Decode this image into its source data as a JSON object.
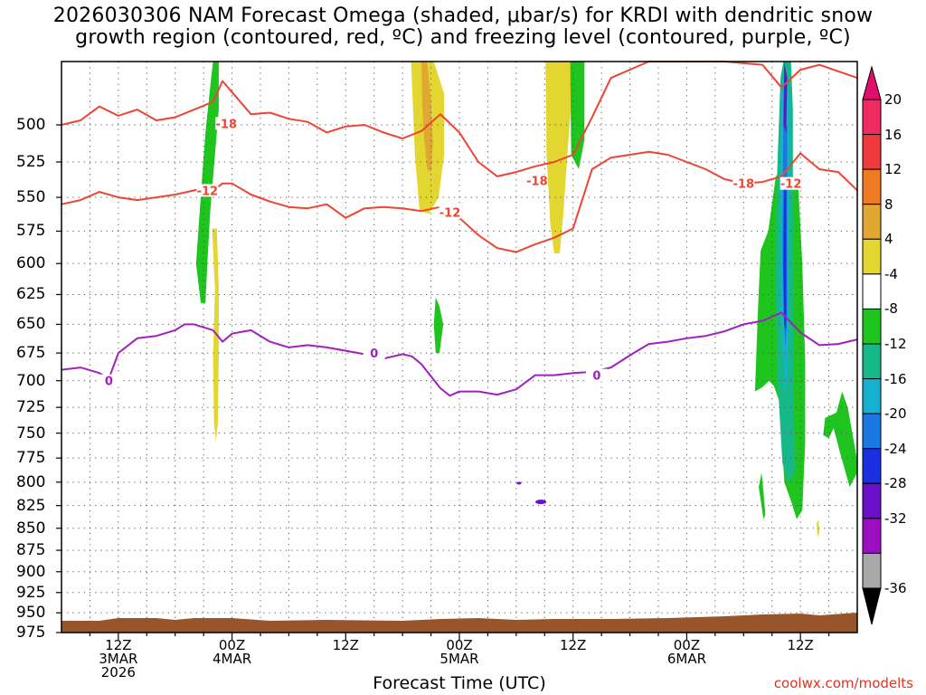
{
  "title": {
    "line1": "2026030306 NAM Forecast Omega (shaded, μbar/s) for KRDI with dendritic snow",
    "line2": "growth region (contoured, red, ºC) and freezing level (contoured, purple, ºC)"
  },
  "xlabel": "Forecast Time (UTC)",
  "credit": "coolwx.com/modelts",
  "chart_data": {
    "type": "heatmap",
    "x_range_hours": [
      0,
      84
    ],
    "y_range_hpa": [
      975,
      460
    ],
    "y_ticks": [
      "500",
      "525",
      "550",
      "575",
      "600",
      "625",
      "650",
      "675",
      "700",
      "725",
      "750",
      "775",
      "800",
      "825",
      "850",
      "875",
      "900",
      "925",
      "950",
      "975"
    ],
    "x_ticks": [
      {
        "label": "12Z",
        "sub1": "3MAR",
        "sub2": "2026",
        "hour": 6
      },
      {
        "label": "00Z",
        "sub1": "4MAR",
        "sub2": "",
        "hour": 18
      },
      {
        "label": "12Z",
        "sub1": "",
        "sub2": "",
        "hour": 30
      },
      {
        "label": "00Z",
        "sub1": "5MAR",
        "sub2": "",
        "hour": 42
      },
      {
        "label": "12Z",
        "sub1": "",
        "sub2": "",
        "hour": 54
      },
      {
        "label": "00Z",
        "sub1": "6MAR",
        "sub2": "",
        "hour": 66
      },
      {
        "label": "12Z",
        "sub1": "",
        "sub2": "",
        "hour": 78
      }
    ],
    "colorbar": {
      "labels": [
        "20",
        "16",
        "12",
        "8",
        "4",
        "-4",
        "-8",
        "-12",
        "-16",
        "-20",
        "-24",
        "-28",
        "-32",
        "-36"
      ],
      "colors": [
        "#f02a63",
        "#ee3a3a",
        "#ee7a22",
        "#e0a832",
        "#e4d630",
        "#ffffff",
        "#1fc41f",
        "#16b88a",
        "#18b0d0",
        "#1a78e0",
        "#1a30e0",
        "#6a10c8",
        "#9a10c0",
        "#a8a8a8"
      ],
      "over_color": "#e0106a",
      "under_color": "#000000"
    },
    "contour_labels": [
      {
        "text": "-18",
        "color": "#ee4433"
      },
      {
        "text": "-12",
        "color": "#ee4433"
      },
      {
        "text": "-18",
        "color": "#ee4433"
      },
      {
        "text": "-12",
        "color": "#ee4433"
      },
      {
        "text": "-18",
        "color": "#ee4433"
      },
      {
        "text": "-12",
        "color": "#ee4433"
      },
      {
        "text": "0",
        "color": "#a020c0"
      },
      {
        "text": "0",
        "color": "#a020c0"
      },
      {
        "text": "0",
        "color": "#a020c0"
      }
    ],
    "series": [
      {
        "name": "-18",
        "color": "#ee4433",
        "points": [
          [
            0,
            500
          ],
          [
            2,
            497
          ],
          [
            4,
            488
          ],
          [
            6,
            494
          ],
          [
            8,
            490
          ],
          [
            10,
            497
          ],
          [
            12,
            495
          ],
          [
            14,
            490
          ],
          [
            16,
            485
          ],
          [
            17,
            472
          ],
          [
            20,
            493
          ],
          [
            22,
            492
          ],
          [
            24,
            496
          ],
          [
            26,
            498
          ],
          [
            28,
            505
          ],
          [
            30,
            501
          ],
          [
            32,
            500
          ],
          [
            34,
            505
          ],
          [
            36,
            509
          ],
          [
            38,
            504
          ],
          [
            40,
            493
          ],
          [
            42,
            505
          ],
          [
            44,
            525
          ],
          [
            46,
            535
          ],
          [
            48,
            532
          ],
          [
            50,
            528
          ],
          [
            52,
            525
          ],
          [
            54,
            520
          ],
          [
            56,
            495
          ],
          [
            58,
            470
          ],
          [
            62,
            460
          ],
          [
            70,
            460
          ],
          [
            74,
            462
          ],
          [
            76,
            476
          ],
          [
            78,
            465
          ],
          [
            80,
            462
          ],
          [
            84,
            470
          ]
        ]
      },
      {
        "name": "-12",
        "color": "#ee4433",
        "points": [
          [
            0,
            555
          ],
          [
            2,
            552
          ],
          [
            4,
            546
          ],
          [
            6,
            550
          ],
          [
            8,
            552
          ],
          [
            10,
            550
          ],
          [
            12,
            548
          ],
          [
            14,
            545
          ],
          [
            15,
            543
          ],
          [
            16,
            545
          ],
          [
            17,
            540
          ],
          [
            18,
            540
          ],
          [
            20,
            548
          ],
          [
            22,
            553
          ],
          [
            24,
            557
          ],
          [
            26,
            558
          ],
          [
            28,
            555
          ],
          [
            29,
            560
          ],
          [
            30,
            565
          ],
          [
            32,
            558
          ],
          [
            34,
            557
          ],
          [
            36,
            558
          ],
          [
            38,
            560
          ],
          [
            40,
            557
          ],
          [
            42,
            565
          ],
          [
            44,
            578
          ],
          [
            46,
            588
          ],
          [
            48,
            591
          ],
          [
            50,
            585
          ],
          [
            52,
            580
          ],
          [
            54,
            573
          ],
          [
            56,
            530
          ],
          [
            58,
            522
          ],
          [
            60,
            520
          ],
          [
            62,
            518
          ],
          [
            64,
            520
          ],
          [
            66,
            525
          ],
          [
            68,
            530
          ],
          [
            70,
            537
          ],
          [
            72,
            540
          ],
          [
            74,
            539
          ],
          [
            76,
            535
          ],
          [
            78,
            519
          ],
          [
            80,
            530
          ],
          [
            82,
            532
          ],
          [
            84,
            545
          ]
        ]
      },
      {
        "name": "0",
        "color": "#a020c0",
        "points": [
          [
            0,
            690
          ],
          [
            2,
            688
          ],
          [
            4,
            693
          ],
          [
            5,
            698
          ],
          [
            6,
            675
          ],
          [
            8,
            662
          ],
          [
            10,
            660
          ],
          [
            12,
            655
          ],
          [
            13,
            650
          ],
          [
            14,
            650
          ],
          [
            16,
            655
          ],
          [
            17,
            665
          ],
          [
            18,
            658
          ],
          [
            20,
            655
          ],
          [
            22,
            665
          ],
          [
            24,
            670
          ],
          [
            26,
            668
          ],
          [
            28,
            670
          ],
          [
            30,
            673
          ],
          [
            32,
            676
          ],
          [
            34,
            680
          ],
          [
            36,
            676
          ],
          [
            37,
            678
          ],
          [
            38,
            685
          ],
          [
            40,
            707
          ],
          [
            41,
            714
          ],
          [
            42,
            710
          ],
          [
            44,
            710
          ],
          [
            46,
            713
          ],
          [
            48,
            708
          ],
          [
            50,
            695
          ],
          [
            52,
            695
          ],
          [
            54,
            693
          ],
          [
            56,
            692
          ],
          [
            58,
            688
          ],
          [
            60,
            677
          ],
          [
            62,
            667
          ],
          [
            64,
            665
          ],
          [
            66,
            662
          ],
          [
            68,
            660
          ],
          [
            70,
            656
          ],
          [
            72,
            650
          ],
          [
            74,
            647
          ],
          [
            76,
            640
          ],
          [
            78,
            657
          ],
          [
            80,
            668
          ],
          [
            82,
            667
          ],
          [
            84,
            663
          ]
        ]
      }
    ],
    "terrain_color": "#99552a",
    "plot_background": "#ffffff",
    "grid": true
  }
}
